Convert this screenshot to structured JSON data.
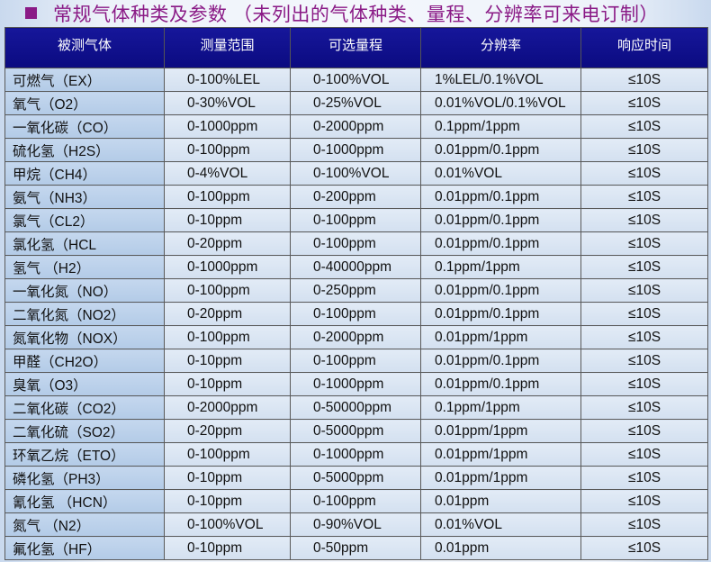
{
  "title": "常规气体种类及参数 （未列出的气体种类、量程、分辨率可来电订制）",
  "colors": {
    "header": "#0b0b80",
    "title": "#8a1a86"
  },
  "headers": [
    "被测气体",
    "测量范围",
    "可选量程",
    "分辨率",
    "响应时间"
  ],
  "rows": [
    [
      "可燃气（EX）",
      "0-100%LEL",
      "0-100%VOL",
      "1%LEL/0.1%VOL",
      "≤10S"
    ],
    [
      "氧气（O2）",
      "0-30%VOL",
      "0-25%VOL",
      "0.01%VOL/0.1%VOL",
      "≤10S"
    ],
    [
      "一氧化碳（CO）",
      "0-1000ppm",
      "0-2000ppm",
      "0.1ppm/1ppm",
      "≤10S"
    ],
    [
      "硫化氢（H2S）",
      "0-100ppm",
      "0-1000ppm",
      "0.01ppm/0.1ppm",
      "≤10S"
    ],
    [
      "甲烷（CH4）",
      "0-4%VOL",
      "0-100%VOL",
      "0.01%VOL",
      "≤10S"
    ],
    [
      "氨气（NH3）",
      "0-100ppm",
      "0-200ppm",
      "0.01ppm/0.1ppm",
      "≤10S"
    ],
    [
      "氯气（CL2）",
      "0-10ppm",
      "0-100ppm",
      "0.01ppm/0.1ppm",
      "≤10S"
    ],
    [
      "氯化氢（HCL",
      "0-20ppm",
      "0-100ppm",
      "0.01ppm/0.1ppm",
      "≤10S"
    ],
    [
      "氢气 （H2）",
      "0-1000ppm",
      "0-40000ppm",
      "0.1ppm/1ppm",
      "≤10S"
    ],
    [
      "一氧化氮（NO）",
      "0-100ppm",
      "0-250ppm",
      "0.01ppm/0.1ppm",
      "≤10S"
    ],
    [
      "二氧化氮（NO2）",
      "0-20ppm",
      "0-100ppm",
      "0.01ppm/0.1ppm",
      "≤10S"
    ],
    [
      "氮氧化物（NOX）",
      "0-100ppm",
      "0-2000ppm",
      "0.01ppm/1ppm",
      "≤10S"
    ],
    [
      "甲醛（CH2O）",
      "0-10ppm",
      "0-100ppm",
      "0.01ppm/0.1ppm",
      "≤10S"
    ],
    [
      "臭氧（O3）",
      "0-10ppm",
      "0-1000ppm",
      "0.01ppm/0.1ppm",
      "≤10S"
    ],
    [
      "二氧化碳（CO2）",
      "0-2000ppm",
      "0-50000ppm",
      "0.1ppm/1ppm",
      "≤10S"
    ],
    [
      "二氧化硫（SO2）",
      "0-20ppm",
      "0-5000ppm",
      "0.01ppm/1ppm",
      "≤10S"
    ],
    [
      "环氧乙烷（ETO）",
      "0-100ppm",
      "0-1000ppm",
      "0.01ppm/1ppm",
      "≤10S"
    ],
    [
      "磷化氢（PH3）",
      "0-10ppm",
      "0-5000ppm",
      "0.01ppm/1ppm",
      "≤10S"
    ],
    [
      "氰化氢 （HCN）",
      "0-10ppm",
      "0-100ppm",
      "0.01ppm",
      "≤10S"
    ],
    [
      "氮气 （N2）",
      "0-100%VOL",
      "0-90%VOL",
      "0.01%VOL",
      "≤10S"
    ],
    [
      "氟化氢（HF）",
      "0-10ppm",
      "0-50ppm",
      "0.01ppm",
      "≤10S"
    ]
  ]
}
